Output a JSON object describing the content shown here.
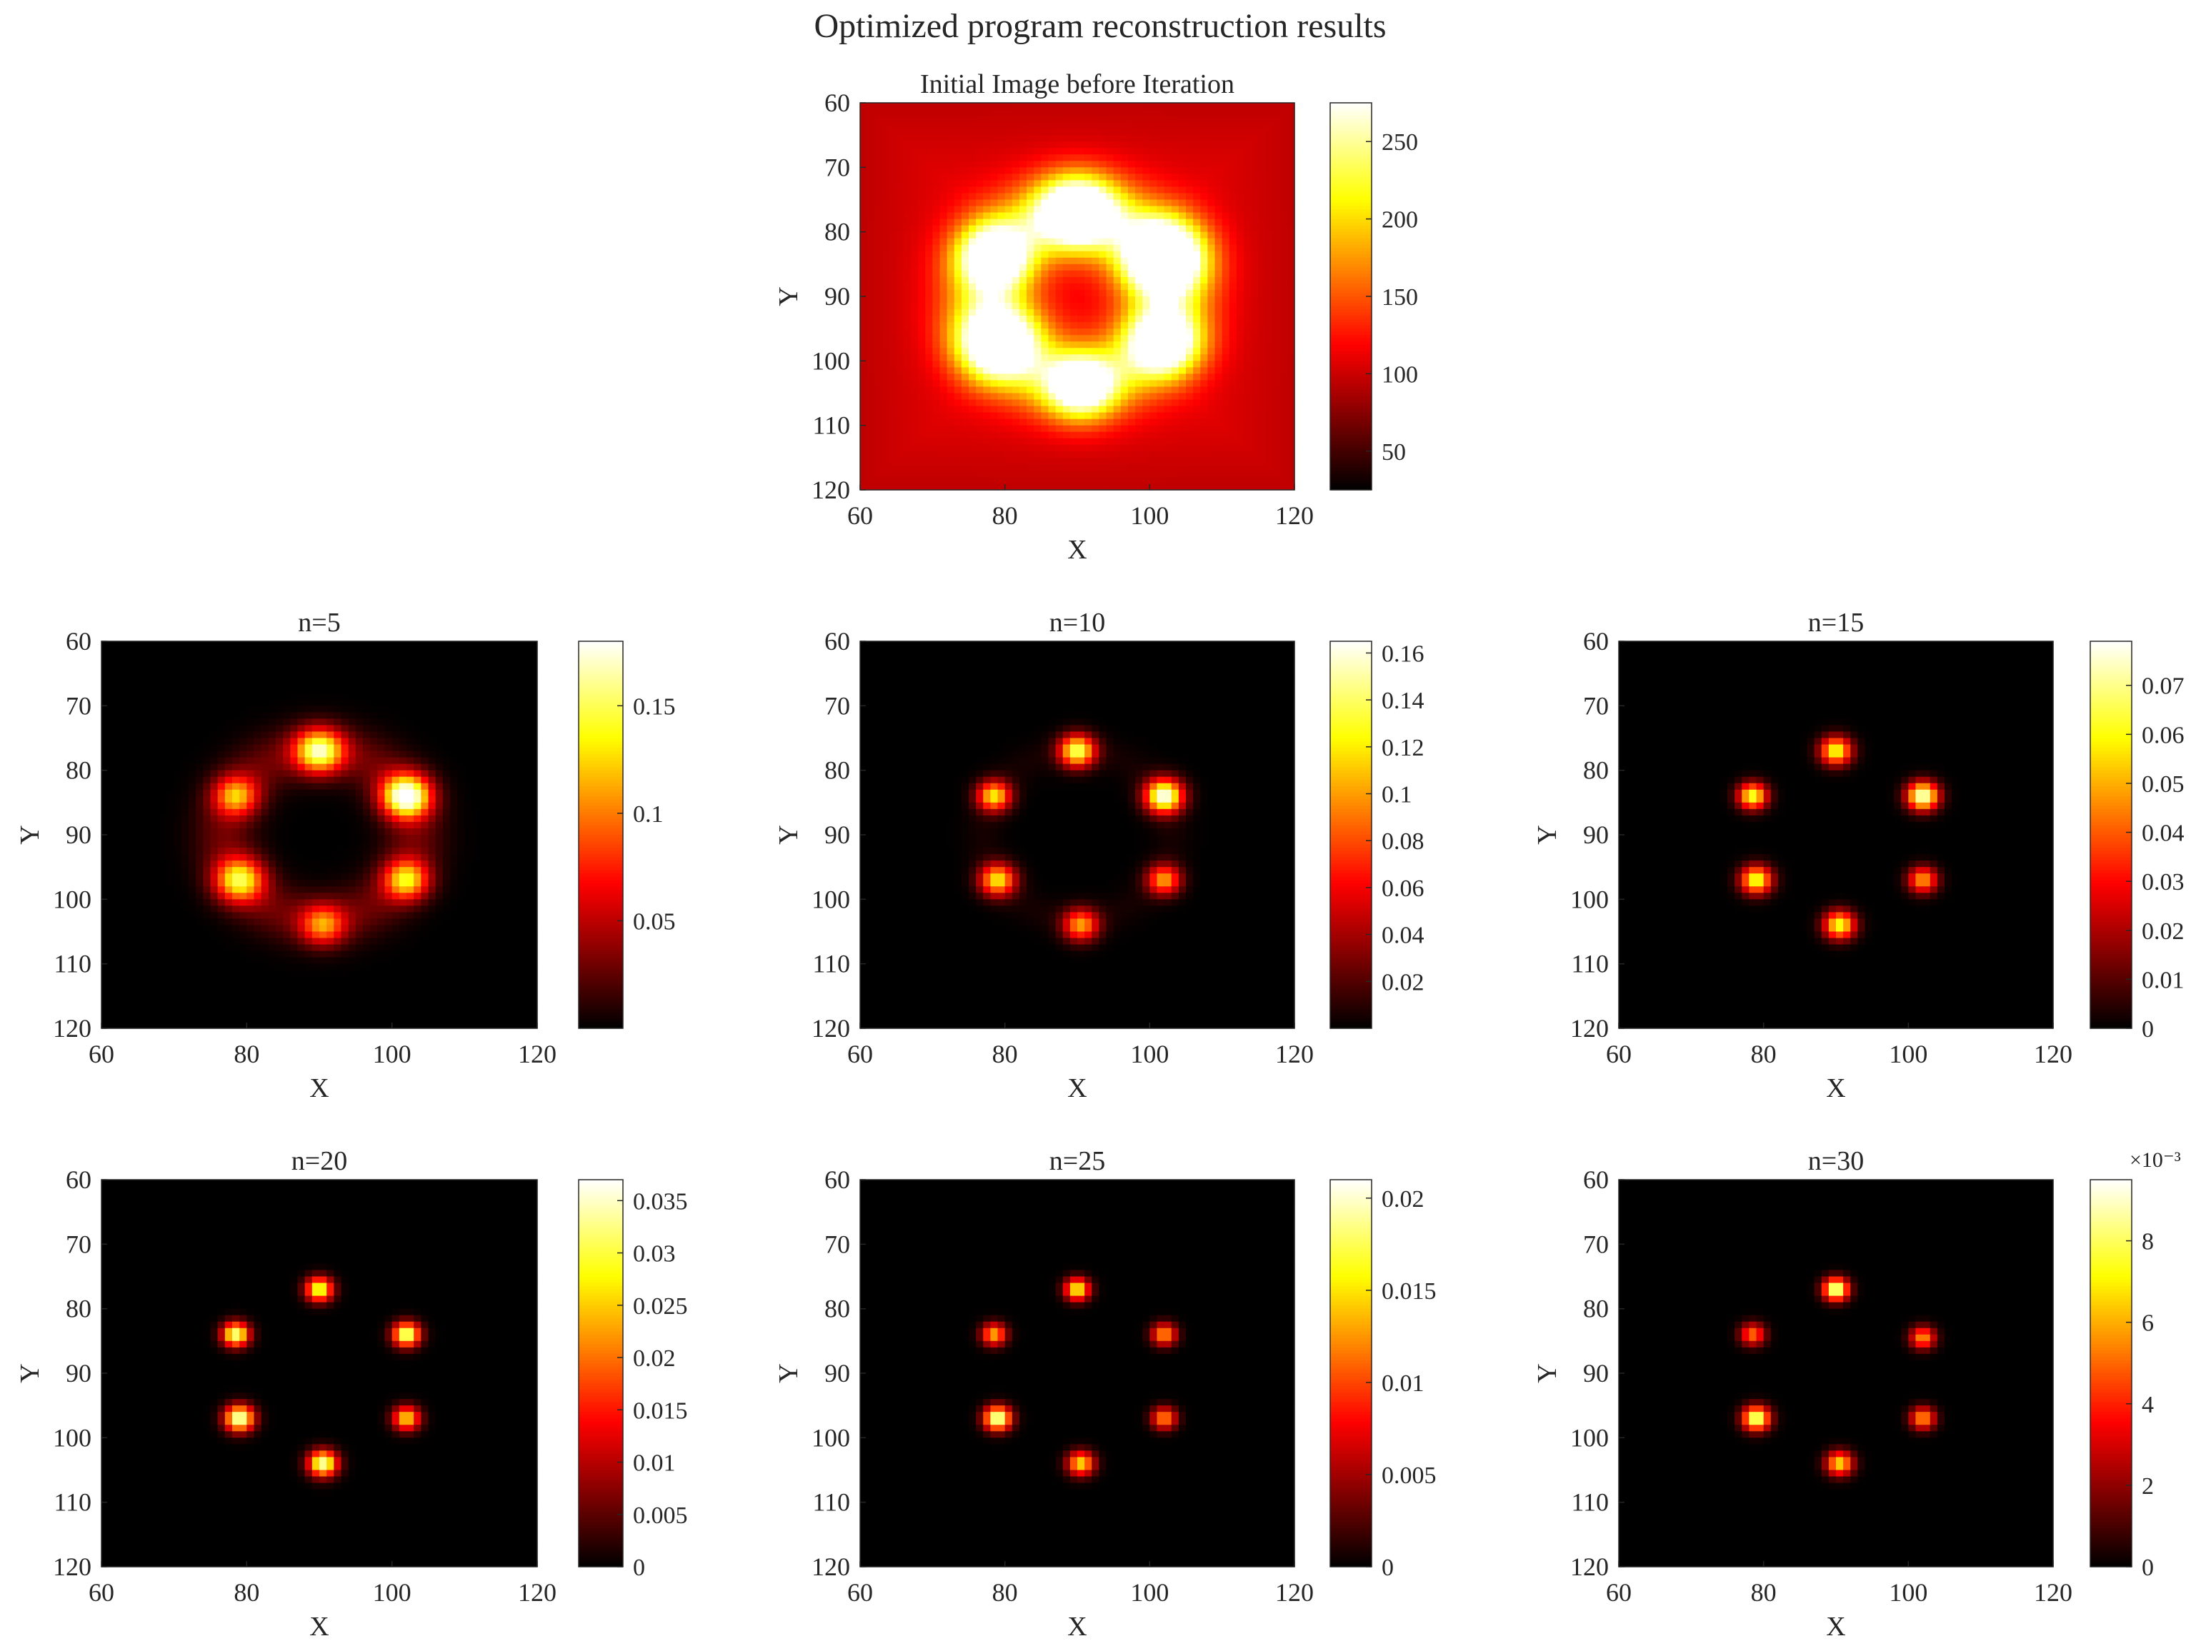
{
  "figure": {
    "suptitle": "Optimized program reconstruction results",
    "colormap": "hot"
  },
  "chart_data": [
    {
      "type": "heatmap",
      "title": "Initial Image before Iteration",
      "xlabel": "X",
      "ylabel": "Y",
      "xlim": [
        60,
        120
      ],
      "ylim": [
        60,
        120
      ],
      "y_reversed": true,
      "xticks": [
        "60",
        "80",
        "100",
        "120"
      ],
      "yticks": [
        "60",
        "70",
        "80",
        "90",
        "100",
        "110",
        "120"
      ],
      "clim": [
        25,
        275
      ],
      "cticks": [
        {
          "v": 250,
          "label": "250"
        },
        {
          "v": 200,
          "label": "200"
        },
        {
          "v": 150,
          "label": "150"
        },
        {
          "v": 100,
          "label": "100"
        },
        {
          "v": 50,
          "label": "50"
        }
      ],
      "colorbar_exponent": "",
      "background": 0.36,
      "peaks": [
        {
          "x": 90,
          "y": 77,
          "v": 0.92,
          "s": 3.8
        },
        {
          "x": 102,
          "y": 84,
          "v": 1.0,
          "s": 4.0
        },
        {
          "x": 78.5,
          "y": 84,
          "v": 0.76,
          "s": 3.6
        },
        {
          "x": 79,
          "y": 97,
          "v": 0.82,
          "s": 4.0
        },
        {
          "x": 102,
          "y": 97,
          "v": 0.76,
          "s": 3.6
        },
        {
          "x": 90.5,
          "y": 104,
          "v": 0.74,
          "s": 3.4
        }
      ],
      "ring": {
        "cx": 90,
        "cy": 90,
        "r": 13,
        "width": 4.5,
        "v": 0.3
      }
    },
    {
      "type": "heatmap",
      "title": "n=5",
      "xlabel": "X",
      "ylabel": "Y",
      "xlim": [
        60,
        120
      ],
      "ylim": [
        60,
        120
      ],
      "y_reversed": true,
      "xticks": [
        "60",
        "80",
        "100",
        "120"
      ],
      "yticks": [
        "60",
        "70",
        "80",
        "90",
        "100",
        "110",
        "120"
      ],
      "clim": [
        0,
        0.18
      ],
      "cticks": [
        {
          "v": 0.15,
          "label": "0.15"
        },
        {
          "v": 0.1,
          "label": "0.1"
        },
        {
          "v": 0.05,
          "label": "0.05"
        }
      ],
      "colorbar_exponent": "",
      "background": 0.0,
      "peaks": [
        {
          "x": 90,
          "y": 77,
          "v": 0.82,
          "s": 2.3
        },
        {
          "x": 102,
          "y": 84,
          "v": 1.0,
          "s": 2.3
        },
        {
          "x": 78.5,
          "y": 84,
          "v": 0.55,
          "s": 2.1
        },
        {
          "x": 79,
          "y": 97,
          "v": 0.7,
          "s": 2.3
        },
        {
          "x": 102,
          "y": 97,
          "v": 0.65,
          "s": 2.1
        },
        {
          "x": 90.5,
          "y": 104,
          "v": 0.5,
          "s": 2.1
        }
      ],
      "ring": {
        "cx": 90,
        "cy": 90,
        "r": 13,
        "width": 3.0,
        "v": 0.16
      }
    },
    {
      "type": "heatmap",
      "title": "n=10",
      "xlabel": "X",
      "ylabel": "Y",
      "xlim": [
        60,
        120
      ],
      "ylim": [
        60,
        120
      ],
      "y_reversed": true,
      "xticks": [
        "60",
        "80",
        "100",
        "120"
      ],
      "yticks": [
        "60",
        "70",
        "80",
        "90",
        "100",
        "110",
        "120"
      ],
      "clim": [
        0,
        0.165
      ],
      "cticks": [
        {
          "v": 0.16,
          "label": "0.16"
        },
        {
          "v": 0.14,
          "label": "0.14"
        },
        {
          "v": 0.12,
          "label": "0.12"
        },
        {
          "v": 0.1,
          "label": "0.1"
        },
        {
          "v": 0.08,
          "label": "0.08"
        },
        {
          "v": 0.06,
          "label": "0.06"
        },
        {
          "v": 0.04,
          "label": "0.04"
        },
        {
          "v": 0.02,
          "label": "0.02"
        }
      ],
      "colorbar_exponent": "",
      "background": 0.0,
      "peaks": [
        {
          "x": 90,
          "y": 77,
          "v": 0.85,
          "s": 1.7
        },
        {
          "x": 102,
          "y": 84,
          "v": 1.0,
          "s": 1.8
        },
        {
          "x": 78.5,
          "y": 84,
          "v": 0.72,
          "s": 1.6
        },
        {
          "x": 79,
          "y": 97,
          "v": 0.72,
          "s": 1.7
        },
        {
          "x": 102,
          "y": 97,
          "v": 0.6,
          "s": 1.6
        },
        {
          "x": 90.5,
          "y": 104,
          "v": 0.6,
          "s": 1.7
        }
      ],
      "ring": {
        "cx": 90,
        "cy": 90,
        "r": 13,
        "width": 2.0,
        "v": 0.03
      }
    },
    {
      "type": "heatmap",
      "title": "n=15",
      "xlabel": "X",
      "ylabel": "Y",
      "xlim": [
        60,
        120
      ],
      "ylim": [
        60,
        120
      ],
      "y_reversed": true,
      "xticks": [
        "60",
        "80",
        "100",
        "120"
      ],
      "yticks": [
        "60",
        "70",
        "80",
        "90",
        "100",
        "110",
        "120"
      ],
      "clim": [
        0,
        0.079
      ],
      "cticks": [
        {
          "v": 0.07,
          "label": "0.07"
        },
        {
          "v": 0.06,
          "label": "0.06"
        },
        {
          "v": 0.05,
          "label": "0.05"
        },
        {
          "v": 0.04,
          "label": "0.04"
        },
        {
          "v": 0.03,
          "label": "0.03"
        },
        {
          "v": 0.02,
          "label": "0.02"
        },
        {
          "v": 0.01,
          "label": "0.01"
        },
        {
          "v": 0,
          "label": "0"
        }
      ],
      "colorbar_exponent": "",
      "background": 0.0,
      "peaks": [
        {
          "x": 90,
          "y": 77,
          "v": 0.8,
          "s": 1.5
        },
        {
          "x": 102,
          "y": 84,
          "v": 1.0,
          "s": 1.5
        },
        {
          "x": 78.5,
          "y": 84,
          "v": 0.82,
          "s": 1.4
        },
        {
          "x": 79,
          "y": 97,
          "v": 0.82,
          "s": 1.5
        },
        {
          "x": 102,
          "y": 97,
          "v": 0.62,
          "s": 1.4
        },
        {
          "x": 90.5,
          "y": 104,
          "v": 0.8,
          "s": 1.5
        }
      ],
      "ring": {
        "cx": 90,
        "cy": 90,
        "r": 13,
        "width": 1.5,
        "v": 0.0
      }
    },
    {
      "type": "heatmap",
      "title": "n=20",
      "xlabel": "X",
      "ylabel": "Y",
      "xlim": [
        60,
        120
      ],
      "ylim": [
        60,
        120
      ],
      "y_reversed": true,
      "xticks": [
        "60",
        "80",
        "100",
        "120"
      ],
      "yticks": [
        "60",
        "70",
        "80",
        "90",
        "100",
        "110",
        "120"
      ],
      "clim": [
        0,
        0.037
      ],
      "cticks": [
        {
          "v": 0.035,
          "label": "0.035"
        },
        {
          "v": 0.03,
          "label": "0.03"
        },
        {
          "v": 0.025,
          "label": "0.025"
        },
        {
          "v": 0.02,
          "label": "0.02"
        },
        {
          "v": 0.015,
          "label": "0.015"
        },
        {
          "v": 0.01,
          "label": "0.01"
        },
        {
          "v": 0.005,
          "label": "0.005"
        },
        {
          "v": 0,
          "label": "0"
        }
      ],
      "colorbar_exponent": "",
      "background": 0.0,
      "peaks": [
        {
          "x": 90,
          "y": 77,
          "v": 0.85,
          "s": 1.3
        },
        {
          "x": 102,
          "y": 84,
          "v": 0.95,
          "s": 1.3
        },
        {
          "x": 78.5,
          "y": 84,
          "v": 0.92,
          "s": 1.3
        },
        {
          "x": 79,
          "y": 97,
          "v": 1.0,
          "s": 1.4
        },
        {
          "x": 102,
          "y": 97,
          "v": 0.72,
          "s": 1.3
        },
        {
          "x": 90.5,
          "y": 104,
          "v": 0.95,
          "s": 1.4
        }
      ],
      "ring": {
        "cx": 90,
        "cy": 90,
        "r": 13,
        "width": 1.5,
        "v": 0.0
      }
    },
    {
      "type": "heatmap",
      "title": "n=25",
      "xlabel": "X",
      "ylabel": "Y",
      "xlim": [
        60,
        120
      ],
      "ylim": [
        60,
        120
      ],
      "y_reversed": true,
      "xticks": [
        "60",
        "80",
        "100",
        "120"
      ],
      "yticks": [
        "60",
        "70",
        "80",
        "90",
        "100",
        "110",
        "120"
      ],
      "clim": [
        0,
        0.021
      ],
      "cticks": [
        {
          "v": 0.02,
          "label": "0.02"
        },
        {
          "v": 0.015,
          "label": "0.015"
        },
        {
          "v": 0.01,
          "label": "0.01"
        },
        {
          "v": 0.005,
          "label": "0.005"
        },
        {
          "v": 0,
          "label": "0"
        }
      ],
      "colorbar_exponent": "",
      "background": 0.0,
      "peaks": [
        {
          "x": 90,
          "y": 77,
          "v": 0.8,
          "s": 1.2
        },
        {
          "x": 102,
          "y": 84,
          "v": 0.62,
          "s": 1.2
        },
        {
          "x": 78.5,
          "y": 84,
          "v": 0.65,
          "s": 1.2
        },
        {
          "x": 79,
          "y": 97,
          "v": 1.0,
          "s": 1.3
        },
        {
          "x": 102,
          "y": 97,
          "v": 0.6,
          "s": 1.2
        },
        {
          "x": 90.5,
          "y": 104,
          "v": 0.72,
          "s": 1.3
        }
      ],
      "ring": {
        "cx": 90,
        "cy": 90,
        "r": 13,
        "width": 1.5,
        "v": 0.0
      }
    },
    {
      "type": "heatmap",
      "title": "n=30",
      "xlabel": "X",
      "ylabel": "Y",
      "xlim": [
        60,
        120
      ],
      "ylim": [
        60,
        120
      ],
      "y_reversed": true,
      "xticks": [
        "60",
        "80",
        "100",
        "120"
      ],
      "yticks": [
        "60",
        "70",
        "80",
        "90",
        "100",
        "110",
        "120"
      ],
      "clim": [
        0,
        0.0095
      ],
      "cticks": [
        {
          "v": 0.008,
          "label": "8"
        },
        {
          "v": 0.006,
          "label": "6"
        },
        {
          "v": 0.004,
          "label": "4"
        },
        {
          "v": 0.002,
          "label": "2"
        },
        {
          "v": 0,
          "label": "0"
        }
      ],
      "colorbar_exponent": "×10⁻³",
      "background": 0.0,
      "peaks": [
        {
          "x": 90,
          "y": 77,
          "v": 1.0,
          "s": 1.2
        },
        {
          "x": 102,
          "y": 84.5,
          "v": 0.6,
          "s": 1.2
        },
        {
          "x": 78.5,
          "y": 84,
          "v": 0.55,
          "s": 1.2
        },
        {
          "x": 79,
          "y": 97,
          "v": 0.95,
          "s": 1.3
        },
        {
          "x": 102,
          "y": 97,
          "v": 0.62,
          "s": 1.2
        },
        {
          "x": 90.5,
          "y": 104,
          "v": 0.72,
          "s": 1.3
        }
      ],
      "ring": {
        "cx": 90,
        "cy": 90,
        "r": 13,
        "width": 1.5,
        "v": 0.0
      }
    }
  ]
}
